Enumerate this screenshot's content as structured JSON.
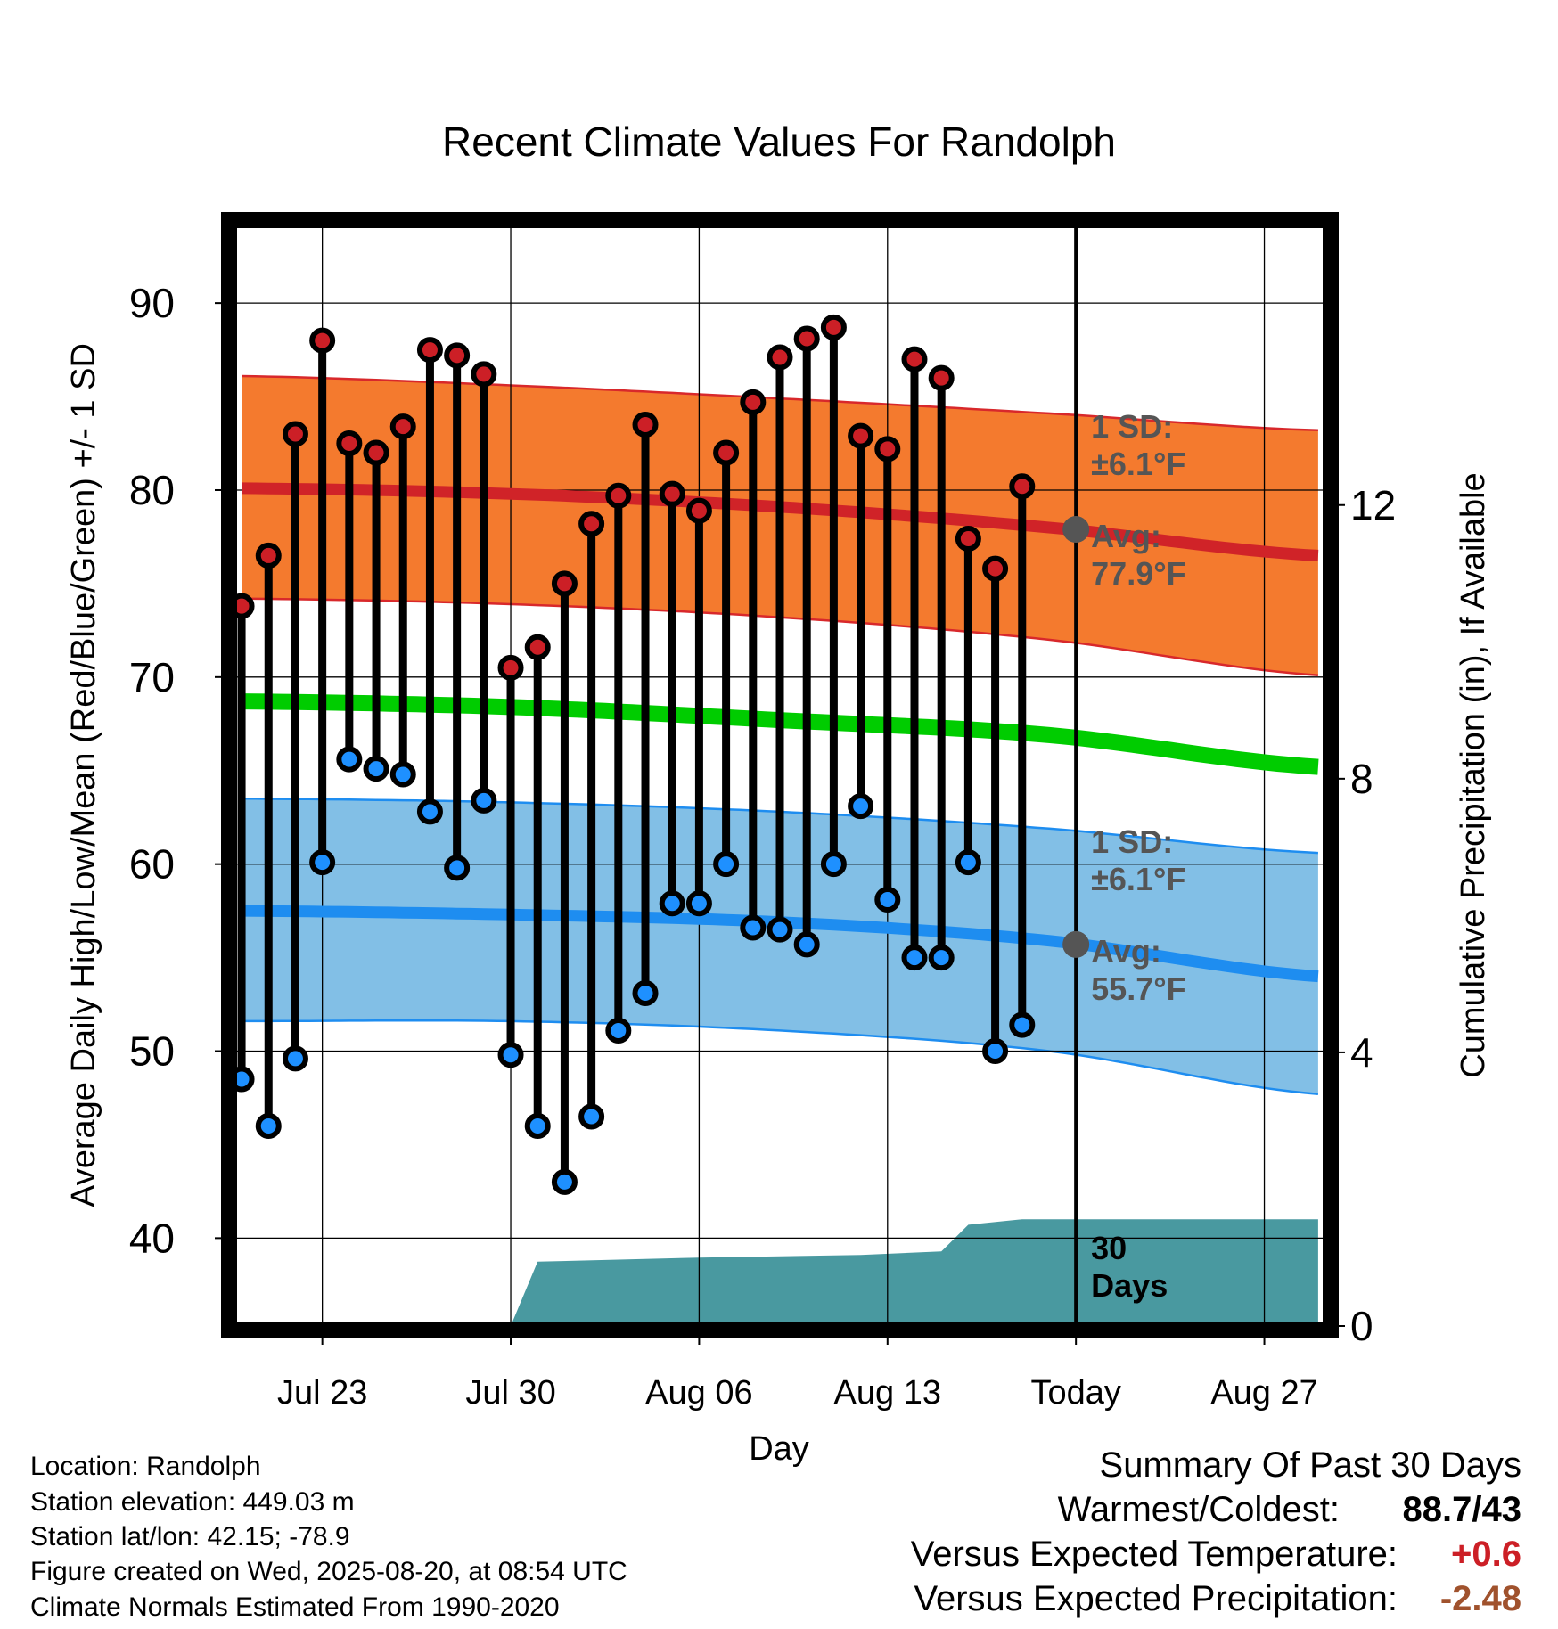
{
  "chart_data": {
    "type": "line",
    "title": "Recent Climate Values For Randolph",
    "xlabel": "Day",
    "ylabel": "Average Daily High/Low/Mean (Red/Blue/Green) +/- 1 SD",
    "y2label": "Cumulative Precipitation (in), If Available",
    "ylim": [
      35.3,
      94.2
    ],
    "y2lim": [
      0,
      16.1
    ],
    "xlim": [
      -0.3,
      40.3
    ],
    "grid": true,
    "x_tick_labels": [
      {
        "x": 3,
        "label": "Jul 23"
      },
      {
        "x": 10,
        "label": "Jul 30"
      },
      {
        "x": 17,
        "label": "Aug 06"
      },
      {
        "x": 24,
        "label": "Aug 13"
      },
      {
        "x": 31,
        "label": "Today"
      },
      {
        "x": 38,
        "label": "Aug 27"
      }
    ],
    "y_ticks": [
      40,
      50,
      60,
      70,
      80,
      90
    ],
    "y2_ticks": [
      0,
      4,
      8,
      12
    ],
    "today_x": 31,
    "daily_high": [
      73.8,
      76.5,
      83.0,
      88.0,
      82.5,
      82.0,
      83.4,
      87.5,
      87.2,
      86.2,
      70.5,
      71.6,
      75.0,
      78.2,
      79.7,
      83.5,
      79.8,
      78.9,
      82.0,
      84.7,
      87.1,
      88.1,
      88.7,
      82.9,
      82.2,
      87.0,
      86.0,
      77.4,
      75.8,
      80.2
    ],
    "daily_low": [
      48.5,
      46.0,
      49.6,
      60.1,
      65.6,
      65.1,
      64.8,
      62.8,
      59.8,
      63.4,
      49.8,
      46.0,
      43.0,
      46.5,
      51.1,
      53.1,
      57.9,
      57.9,
      60.0,
      56.6,
      56.5,
      55.7,
      60.0,
      63.1,
      58.1,
      55.0,
      55.0,
      60.1,
      50.0,
      51.4
    ],
    "normal_high": {
      "x": [
        0,
        10,
        20,
        30,
        40
      ],
      "values": [
        80.1,
        79.8,
        79.1,
        78.0,
        76.5
      ]
    },
    "normal_low": {
      "x": [
        0,
        10,
        20,
        30,
        40
      ],
      "values": [
        57.5,
        57.3,
        56.9,
        55.9,
        54.0
      ]
    },
    "normal_mean": {
      "x": [
        0,
        10,
        20,
        30,
        40
      ],
      "values": [
        68.7,
        68.4,
        67.7,
        66.9,
        65.2
      ]
    },
    "high_sd_band": {
      "x": [
        0,
        10,
        20,
        30,
        40
      ],
      "upper": [
        86.1,
        85.6,
        84.9,
        84.1,
        83.2
      ],
      "lower": [
        74.2,
        73.9,
        73.2,
        72.0,
        70.1
      ]
    },
    "low_sd_band": {
      "x": [
        0,
        10,
        20,
        30,
        40
      ],
      "upper": [
        63.5,
        63.3,
        62.8,
        61.9,
        60.6
      ],
      "lower": [
        51.6,
        51.6,
        51.1,
        50.0,
        47.7
      ]
    },
    "cumulative_precip": {
      "x": [
        10,
        11,
        17,
        23,
        26,
        27,
        29,
        40
      ],
      "values": [
        0,
        0.94,
        1.0,
        1.04,
        1.09,
        1.48,
        1.56,
        1.56
      ]
    },
    "annotations": {
      "high_sd": [
        "1 SD:",
        "±6.1°F"
      ],
      "high_avg": [
        "Avg:",
        "77.9°F"
      ],
      "low_sd": [
        "1 SD:",
        "±6.1°F"
      ],
      "low_avg": [
        "Avg:",
        "55.7°F"
      ],
      "precip_days": [
        "30",
        "Days"
      ],
      "high_avg_value": 77.9,
      "low_avg_value": 55.7
    },
    "colors": {
      "high_band": "#f47a2e",
      "high_band_edge": "#d8282b",
      "high_avg_line": "#d02328",
      "low_band": "#82bfe6",
      "low_band_edge": "#1e8df0",
      "low_avg_line": "#1e8df0",
      "mean_line": "#00cc00",
      "high_dot": "#cc1f26",
      "low_dot": "#1e90ff",
      "precip": "#4999a0",
      "annotation_text": "#555555"
    }
  },
  "info": {
    "location": "Location: Randolph",
    "elevation": "Station elevation: 449.03 m",
    "latlon": "Station lat/lon: 42.15; -78.9",
    "created": "Figure created on Wed, 2025-08-20, at 08:54 UTC",
    "normals": "Climate Normals Estimated From 1990-2020"
  },
  "summary": {
    "title": "Summary Of Past 30 Days",
    "warm_label": "Warmest/Coldest:",
    "warm_value": "88.7/43",
    "temp_label": "Versus Expected Temperature:",
    "temp_value": "+0.6",
    "temp_color": "#cc1f26",
    "precip_label": "Versus Expected Precipitation:",
    "precip_value": "-2.48",
    "precip_color": "#a0522d"
  }
}
